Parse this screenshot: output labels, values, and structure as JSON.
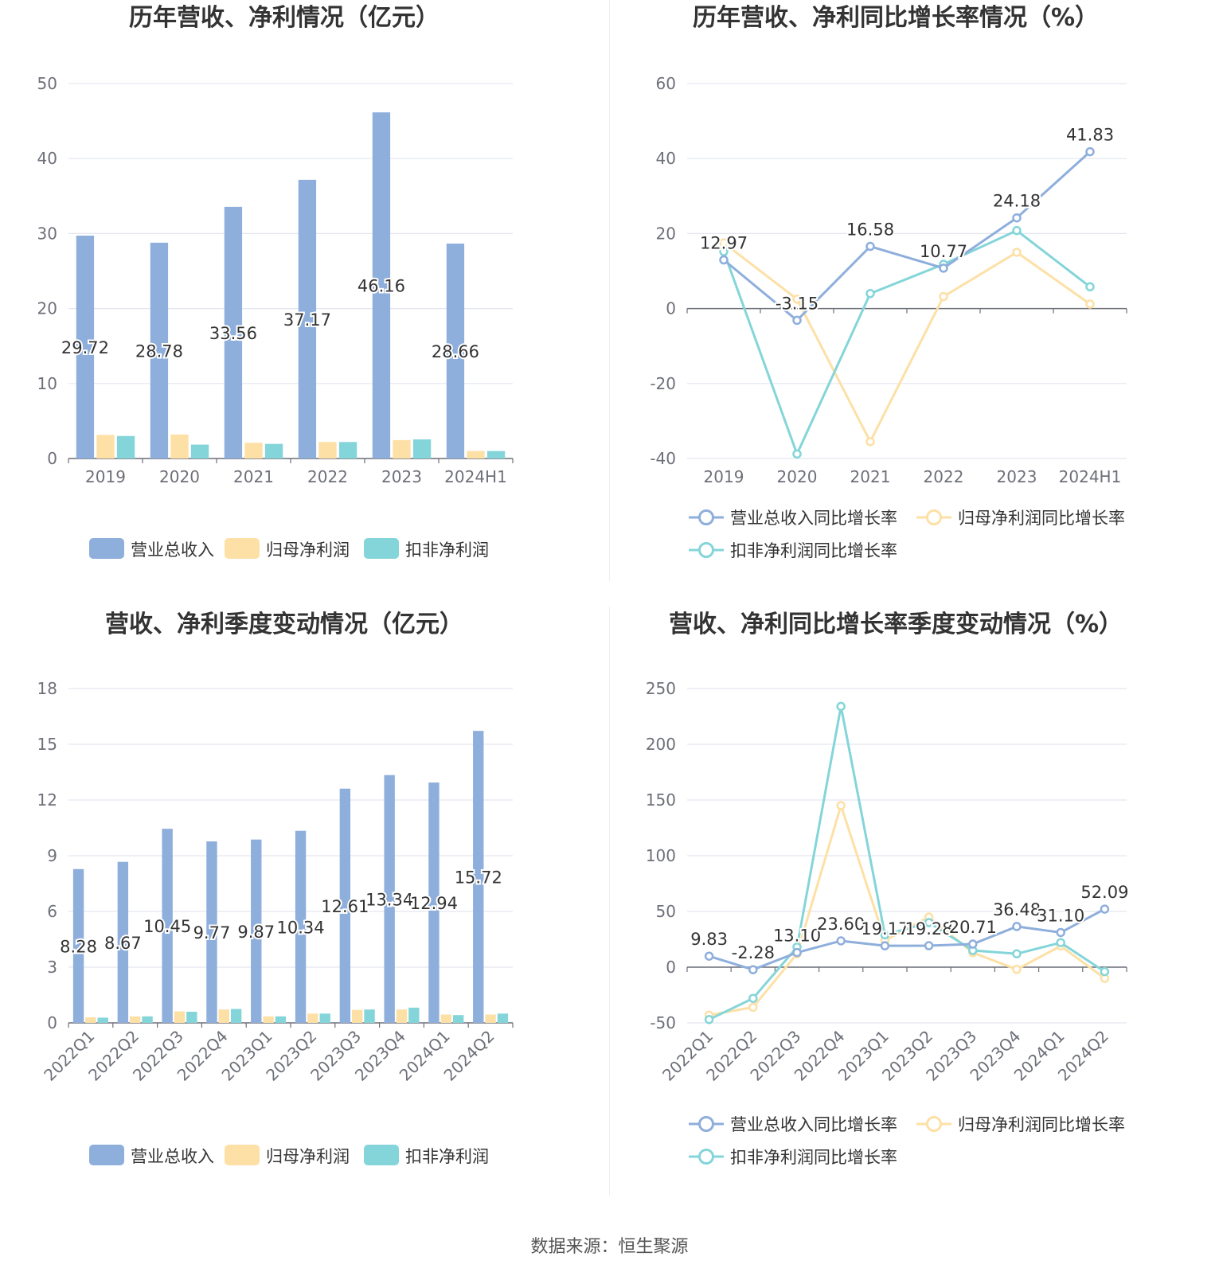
{
  "source": "数据来源：恒生聚源",
  "colors": {
    "revenue": "#8eaedc",
    "parent": "#fde0a6",
    "deduct": "#84d5d9",
    "grid": "#e3e6f0",
    "axis": "#6e7079",
    "tick": "#6e7079",
    "title": "#333333",
    "label": "#333333"
  },
  "chart_data": [
    {
      "type": "bar",
      "title": "历年营收、净利情况（亿元）",
      "categories": [
        "2019",
        "2020",
        "2021",
        "2022",
        "2023",
        "2024H1"
      ],
      "ylim": [
        0,
        50
      ],
      "yticks": [
        0,
        10,
        20,
        30,
        40,
        50
      ],
      "grid": true,
      "legend_position": "bottom",
      "series": [
        {
          "name": "营业总收入",
          "values": [
            29.72,
            28.78,
            33.56,
            37.17,
            46.16,
            28.66
          ],
          "labeled": true
        },
        {
          "name": "归母净利润",
          "values": [
            3.15,
            3.2,
            2.1,
            2.2,
            2.45,
            1.0
          ],
          "labeled": false
        },
        {
          "name": "扣非净利润",
          "values": [
            3.0,
            1.85,
            1.95,
            2.2,
            2.55,
            1.0
          ],
          "labeled": false
        }
      ]
    },
    {
      "type": "line",
      "title": "历年营收、净利同比增长率情况（%）",
      "categories": [
        "2019",
        "2020",
        "2021",
        "2022",
        "2023",
        "2024H1"
      ],
      "ylim": [
        -40,
        60
      ],
      "yticks": [
        -40,
        -20,
        0,
        20,
        40,
        60
      ],
      "grid": true,
      "legend_position": "bottom",
      "series": [
        {
          "name": "营业总收入同比增长率",
          "values": [
            12.97,
            -3.15,
            16.58,
            10.77,
            24.18,
            41.83
          ],
          "labeled": true
        },
        {
          "name": "归母净利润同比增长率",
          "values": [
            17.5,
            2.5,
            -35.5,
            3.2,
            15.0,
            1.2
          ],
          "labeled": false
        },
        {
          "name": "扣非净利润同比增长率",
          "values": [
            15.2,
            -38.8,
            4.0,
            11.8,
            20.8,
            5.8
          ],
          "labeled": false
        }
      ]
    },
    {
      "type": "bar",
      "title": "营收、净利季度变动情况（亿元）",
      "categories": [
        "2022Q1",
        "2022Q2",
        "2022Q3",
        "2022Q4",
        "2023Q1",
        "2023Q2",
        "2023Q3",
        "2023Q4",
        "2024Q1",
        "2024Q2"
      ],
      "ylim": [
        0,
        18
      ],
      "yticks": [
        0,
        3,
        6,
        9,
        12,
        15,
        18
      ],
      "grid": true,
      "legend_position": "bottom",
      "series": [
        {
          "name": "营业总收入",
          "values": [
            8.28,
            8.67,
            10.45,
            9.77,
            9.87,
            10.34,
            12.61,
            13.34,
            12.94,
            15.72
          ],
          "labeled": true
        },
        {
          "name": "归母净利润",
          "values": [
            0.3,
            0.35,
            0.62,
            0.72,
            0.35,
            0.5,
            0.7,
            0.72,
            0.45,
            0.45
          ],
          "labeled": false
        },
        {
          "name": "扣非净利润",
          "values": [
            0.28,
            0.35,
            0.6,
            0.75,
            0.35,
            0.5,
            0.72,
            0.82,
            0.42,
            0.5
          ],
          "labeled": false
        }
      ]
    },
    {
      "type": "line",
      "title": "营收、净利同比增长率季度变动情况（%）",
      "categories": [
        "2022Q1",
        "2022Q2",
        "2022Q3",
        "2022Q4",
        "2023Q1",
        "2023Q2",
        "2023Q3",
        "2023Q4",
        "2024Q1",
        "2024Q2"
      ],
      "ylim": [
        -50,
        250
      ],
      "yticks": [
        -50,
        0,
        50,
        100,
        150,
        200,
        250
      ],
      "grid": true,
      "legend_position": "bottom",
      "rotate_x_labels": true,
      "series": [
        {
          "name": "营业总收入同比增长率",
          "values": [
            9.83,
            -2.28,
            13.1,
            23.6,
            19.17,
            19.28,
            20.71,
            36.48,
            31.1,
            52.09
          ],
          "labeled": true
        },
        {
          "name": "归母净利润同比增长率",
          "values": [
            -43,
            -36,
            12,
            145,
            24,
            45,
            13,
            -2,
            19,
            -10
          ],
          "labeled": false
        },
        {
          "name": "扣非净利润同比增长率",
          "values": [
            -47,
            -28,
            18,
            234,
            29,
            40,
            15,
            12,
            22,
            -4
          ],
          "labeled": false
        }
      ]
    }
  ]
}
